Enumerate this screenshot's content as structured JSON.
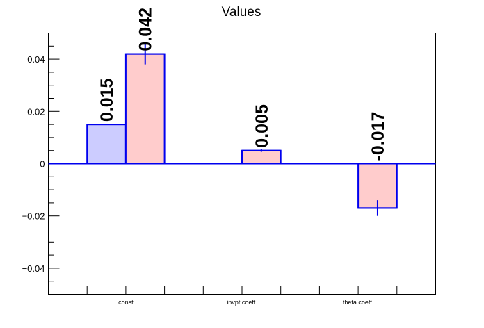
{
  "chart_data": {
    "type": "bar",
    "title": "Values",
    "xlabel": "",
    "ylabel": "",
    "categories": [
      "const",
      "invpt coeff.",
      "theta coeff."
    ],
    "ylim": [
      -0.05,
      0.05
    ],
    "yticks": [
      -0.04,
      -0.02,
      0,
      0.02,
      0.04
    ],
    "ytick_labels": [
      "−0.04",
      "−0.02",
      "0",
      "0.02",
      "0.04"
    ],
    "grid": false,
    "legend": "none",
    "bars": [
      {
        "category": "const",
        "slot": 1,
        "value": 0.015,
        "label": "0.015",
        "fill": "#ccccff",
        "error": null
      },
      {
        "category": "const",
        "slot": 2,
        "value": 0.042,
        "label": "0.042",
        "fill": "#ffcccc",
        "error": 0.004
      },
      {
        "category": "invpt coeff.",
        "slot": 5,
        "value": 0.005,
        "label": "0.005",
        "fill": "#ffcccc",
        "error": 0.0005
      },
      {
        "category": "theta coeff.",
        "slot": 8,
        "value": -0.017,
        "label": "-0.017",
        "fill": "#ffcccc",
        "error": 0.003
      }
    ],
    "colors": {
      "outline": "#0000ee",
      "zero_line": "#0000ee",
      "frame": "#000000"
    }
  }
}
